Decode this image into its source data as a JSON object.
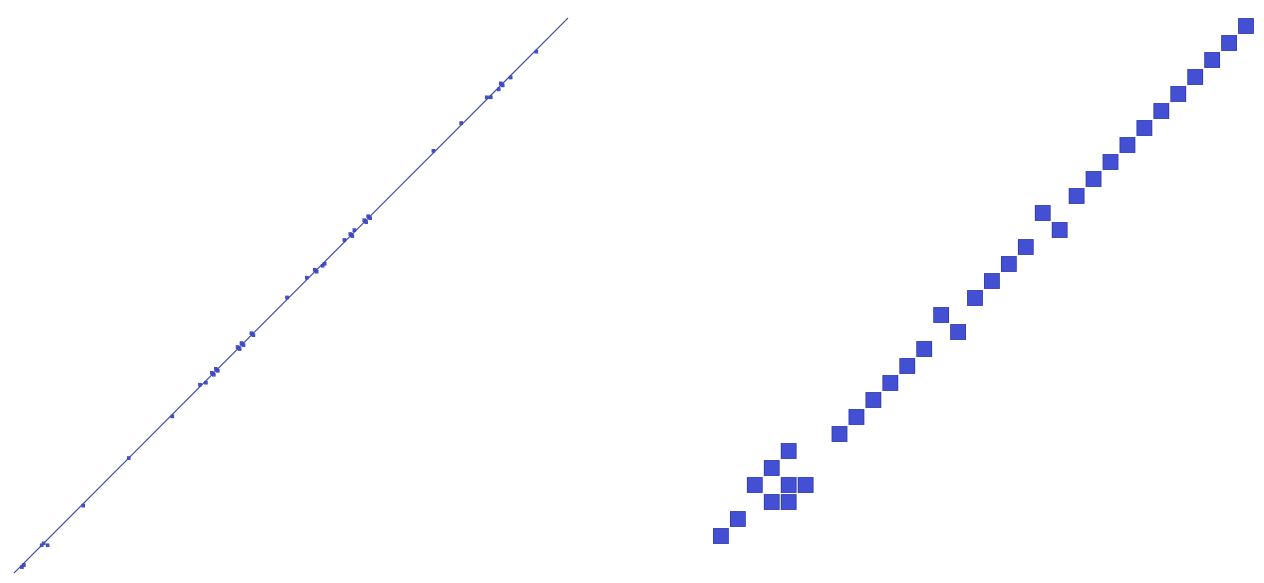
{
  "colors": {
    "background": "#ffffff",
    "marker": "#4450d4",
    "marker_edge": "#2c36a8",
    "line": "#3f4aa6"
  },
  "chart_data": [
    {
      "type": "scatter",
      "title": "",
      "xlabel": "",
      "ylabel": "",
      "axes_visible": false,
      "grid": false,
      "legend": "none",
      "xlim": [
        0,
        280
      ],
      "ylim": [
        0,
        280
      ],
      "line": {
        "x": [
          0,
          280
        ],
        "y": [
          0,
          280
        ]
      },
      "points": {
        "x": [
          4,
          5,
          14,
          15,
          17,
          35,
          58,
          80,
          94,
          97,
          100,
          101,
          102,
          103,
          113,
          114,
          115,
          116,
          120,
          121,
          138,
          148,
          152,
          153,
          156,
          157,
          167,
          170,
          171,
          172,
          177,
          178,
          179,
          180,
          212,
          226,
          239,
          241,
          245,
          246,
          247,
          251,
          264
        ],
        "y": [
          3,
          4,
          14,
          15,
          14,
          34,
          58,
          79,
          95,
          96,
          101,
          100,
          103,
          102,
          114,
          113,
          116,
          115,
          121,
          120,
          139,
          149,
          153,
          152,
          155,
          156,
          168,
          171,
          170,
          173,
          178,
          177,
          180,
          179,
          213,
          227,
          240,
          240,
          244,
          247,
          246,
          250,
          263
        ]
      }
    },
    {
      "type": "scatter",
      "title": "",
      "xlabel": "",
      "ylabel": "",
      "axes_visible": false,
      "grid": false,
      "legend": "none",
      "xlim": [
        0,
        32
      ],
      "ylim": [
        0,
        32
      ],
      "points": {
        "x": [
          1,
          2,
          3,
          4,
          4,
          5,
          5,
          5,
          6,
          8,
          9,
          10,
          11,
          12,
          13,
          14,
          15,
          16,
          17,
          18,
          19,
          20,
          21,
          22,
          23,
          24,
          25,
          26,
          27,
          28,
          29,
          30,
          31,
          32
        ],
        "y": [
          1,
          2,
          4,
          5,
          3,
          6,
          4,
          3,
          4,
          7,
          8,
          9,
          10,
          11,
          12,
          14,
          13,
          15,
          16,
          17,
          18,
          20,
          19,
          21,
          22,
          23,
          24,
          25,
          26,
          27,
          28,
          29,
          30,
          31
        ]
      }
    }
  ]
}
